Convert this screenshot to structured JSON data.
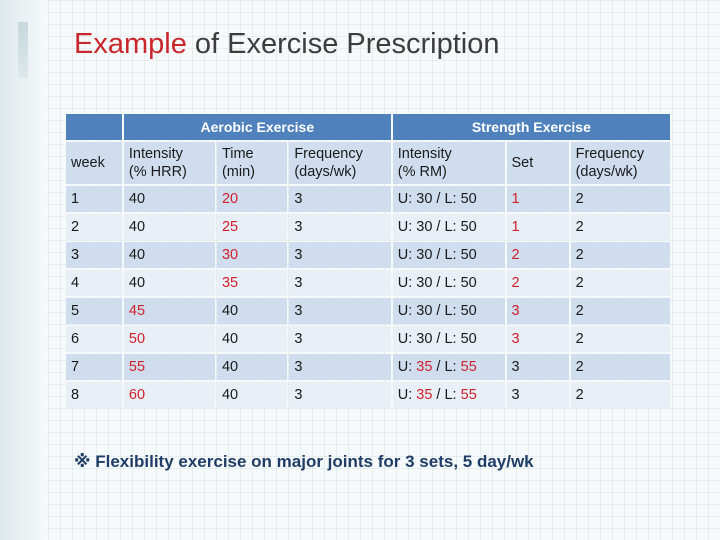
{
  "title": {
    "highlight": "Example",
    "rest": " of Exercise Prescription"
  },
  "table": {
    "group_headers": {
      "aerobic": "Aerobic Exercise",
      "strength": "Strength Exercise"
    },
    "columns": [
      "week",
      "Intensity\n(% HRR)",
      "Time\n(min)",
      "Frequency\n(days/wk)",
      "Intensity\n(% RM)",
      "Set",
      "Frequency\n(days/wk)"
    ],
    "rows": [
      [
        "1",
        "40",
        "20",
        "3",
        "U: 30 / L: 50",
        "1",
        "2"
      ],
      [
        "2",
        "40",
        "25",
        "3",
        "U: 30 / L: 50",
        "1",
        "2"
      ],
      [
        "3",
        "40",
        "30",
        "3",
        "U: 30 / L: 50",
        "2",
        "2"
      ],
      [
        "4",
        "40",
        "35",
        "3",
        "U: 30 / L: 50",
        "2",
        "2"
      ],
      [
        "5",
        "45",
        "40",
        "3",
        "U: 30 / L: 50",
        "3",
        "2"
      ],
      [
        "6",
        "50",
        "40",
        "3",
        "U: 30 / L: 50",
        "3",
        "2"
      ],
      [
        "7",
        "55",
        "40",
        "3",
        "U: 35 / L: 55",
        "3",
        "2"
      ],
      [
        "8",
        "60",
        "40",
        "3",
        "U: 35 / L: 55",
        "3",
        "2"
      ]
    ],
    "highlighted_values_color": "#d0202a"
  },
  "footnote": "※ Flexibility exercise on major joints  for 3 sets, 5 day/wk",
  "colors": {
    "header_blue": "#4f81bd",
    "row_dark": "#cfddee",
    "row_light": "#e8eff7",
    "title_red": "#c8272b"
  }
}
